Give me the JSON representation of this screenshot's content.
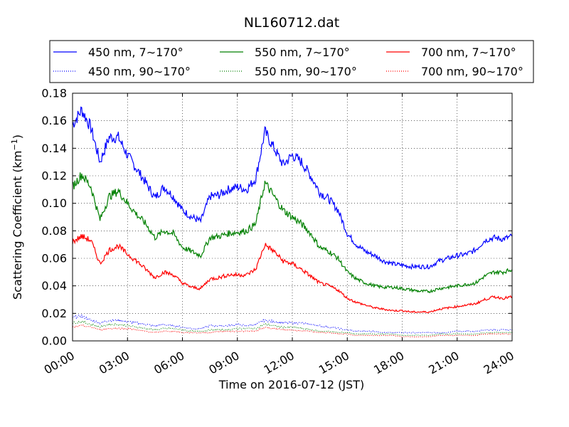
{
  "chart_data": {
    "type": "line",
    "title": "NL160712.dat",
    "xlabel": "Time on 2016-07-12 (JST)",
    "ylabel_main": "Scattering Coefficient (km",
    "ylabel_sup": "−1",
    "ylabel_close": ")",
    "xlim": [
      0,
      24
    ],
    "ylim": [
      0,
      0.18
    ],
    "x_ticks": [
      0,
      3,
      6,
      9,
      12,
      15,
      18,
      21,
      24
    ],
    "x_tick_labels": [
      "00:00",
      "03:00",
      "06:00",
      "09:00",
      "12:00",
      "15:00",
      "18:00",
      "21:00",
      "24:00"
    ],
    "y_ticks": [
      0,
      0.02,
      0.04,
      0.06,
      0.08,
      0.1,
      0.12,
      0.14,
      0.16,
      0.18
    ],
    "y_tick_labels": [
      "0.00",
      "0.02",
      "0.04",
      "0.06",
      "0.08",
      "0.10",
      "0.12",
      "0.14",
      "0.16",
      "0.18"
    ],
    "grid": true,
    "legend_position": "top (above plot), 3 columns",
    "x": [
      0,
      0.5,
      1,
      1.5,
      2,
      2.5,
      3,
      3.5,
      4,
      4.5,
      5,
      5.5,
      6,
      6.5,
      7,
      7.5,
      8,
      8.5,
      9,
      9.5,
      10,
      10.5,
      11,
      11.5,
      12,
      12.5,
      13,
      13.5,
      14,
      14.5,
      15,
      15.5,
      16,
      16.5,
      17,
      17.5,
      18,
      18.5,
      19,
      19.5,
      20,
      20.5,
      21,
      21.5,
      22,
      22.5,
      23,
      23.5,
      24
    ],
    "series": [
      {
        "name": "450 nm, 7∼170°",
        "color": "#0000ff",
        "style": "solid",
        "values": [
          0.157,
          0.168,
          0.155,
          0.13,
          0.148,
          0.148,
          0.135,
          0.125,
          0.115,
          0.104,
          0.112,
          0.105,
          0.095,
          0.09,
          0.087,
          0.105,
          0.106,
          0.11,
          0.112,
          0.11,
          0.118,
          0.152,
          0.14,
          0.128,
          0.135,
          0.13,
          0.12,
          0.108,
          0.103,
          0.095,
          0.078,
          0.07,
          0.065,
          0.062,
          0.058,
          0.056,
          0.055,
          0.054,
          0.054,
          0.054,
          0.058,
          0.06,
          0.062,
          0.063,
          0.066,
          0.073,
          0.075,
          0.074,
          0.076
        ]
      },
      {
        "name": "450 nm, 90∼170°",
        "color": "#0000ff",
        "style": "dotted",
        "values": [
          0.017,
          0.018,
          0.015,
          0.013,
          0.015,
          0.015,
          0.014,
          0.013,
          0.012,
          0.011,
          0.012,
          0.011,
          0.01,
          0.009,
          0.009,
          0.011,
          0.011,
          0.011,
          0.012,
          0.011,
          0.012,
          0.015,
          0.014,
          0.013,
          0.013,
          0.013,
          0.012,
          0.011,
          0.01,
          0.009,
          0.008,
          0.007,
          0.007,
          0.007,
          0.006,
          0.006,
          0.006,
          0.006,
          0.006,
          0.006,
          0.006,
          0.006,
          0.007,
          0.007,
          0.007,
          0.008,
          0.008,
          0.008,
          0.008
        ]
      },
      {
        "name": "550 nm, 7∼170°",
        "color": "#008000",
        "style": "solid",
        "values": [
          0.112,
          0.121,
          0.112,
          0.088,
          0.105,
          0.109,
          0.1,
          0.092,
          0.085,
          0.075,
          0.08,
          0.078,
          0.068,
          0.065,
          0.062,
          0.075,
          0.076,
          0.078,
          0.079,
          0.08,
          0.085,
          0.115,
          0.105,
          0.095,
          0.09,
          0.085,
          0.078,
          0.068,
          0.065,
          0.06,
          0.05,
          0.045,
          0.042,
          0.04,
          0.039,
          0.039,
          0.038,
          0.037,
          0.036,
          0.036,
          0.038,
          0.039,
          0.04,
          0.041,
          0.042,
          0.047,
          0.05,
          0.05,
          0.052
        ]
      },
      {
        "name": "550 nm, 90∼170°",
        "color": "#008000",
        "style": "dotted",
        "values": [
          0.013,
          0.014,
          0.012,
          0.01,
          0.012,
          0.012,
          0.011,
          0.01,
          0.009,
          0.008,
          0.009,
          0.009,
          0.008,
          0.007,
          0.007,
          0.008,
          0.008,
          0.008,
          0.009,
          0.009,
          0.009,
          0.012,
          0.011,
          0.01,
          0.01,
          0.009,
          0.008,
          0.007,
          0.007,
          0.006,
          0.006,
          0.005,
          0.005,
          0.005,
          0.005,
          0.005,
          0.004,
          0.004,
          0.004,
          0.004,
          0.005,
          0.005,
          0.005,
          0.005,
          0.005,
          0.006,
          0.006,
          0.006,
          0.006
        ]
      },
      {
        "name": "700 nm, 7∼170°",
        "color": "#ff0000",
        "style": "solid",
        "values": [
          0.072,
          0.076,
          0.073,
          0.056,
          0.066,
          0.069,
          0.063,
          0.058,
          0.052,
          0.046,
          0.05,
          0.048,
          0.042,
          0.039,
          0.038,
          0.045,
          0.046,
          0.048,
          0.048,
          0.048,
          0.052,
          0.07,
          0.065,
          0.058,
          0.056,
          0.052,
          0.047,
          0.042,
          0.04,
          0.037,
          0.031,
          0.028,
          0.026,
          0.024,
          0.023,
          0.022,
          0.022,
          0.021,
          0.021,
          0.021,
          0.023,
          0.024,
          0.025,
          0.026,
          0.027,
          0.03,
          0.032,
          0.031,
          0.032
        ]
      },
      {
        "name": "700 nm, 90∼170°",
        "color": "#ff0000",
        "style": "dotted",
        "values": [
          0.01,
          0.011,
          0.01,
          0.008,
          0.009,
          0.009,
          0.009,
          0.008,
          0.007,
          0.006,
          0.007,
          0.007,
          0.006,
          0.006,
          0.006,
          0.006,
          0.007,
          0.007,
          0.007,
          0.007,
          0.007,
          0.01,
          0.009,
          0.008,
          0.008,
          0.007,
          0.007,
          0.006,
          0.006,
          0.005,
          0.005,
          0.004,
          0.004,
          0.004,
          0.004,
          0.004,
          0.003,
          0.003,
          0.003,
          0.003,
          0.004,
          0.004,
          0.004,
          0.004,
          0.004,
          0.005,
          0.005,
          0.005,
          0.005
        ]
      }
    ]
  }
}
